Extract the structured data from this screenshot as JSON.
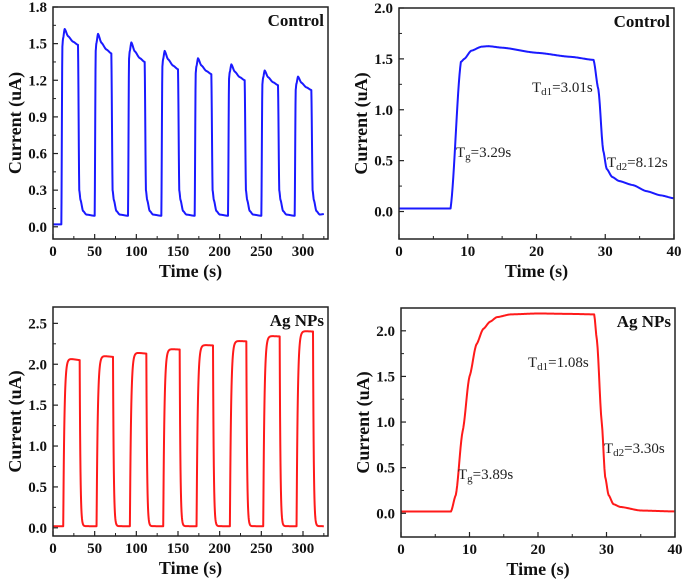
{
  "chart_data": [
    {
      "type": "line",
      "panel_label": "Control",
      "xlabel": "Time (s)",
      "ylabel": "Current (uA)",
      "xlim": [
        0,
        330
      ],
      "ylim": [
        -0.1,
        1.8
      ],
      "xticks": [
        0,
        50,
        100,
        150,
        200,
        250,
        300
      ],
      "yticks": [
        0.0,
        0.3,
        0.6,
        0.9,
        1.2,
        1.5,
        1.8
      ],
      "ytick_decimals": 1,
      "color": "#1a1aff",
      "dark_current": 0.02,
      "x_end": 325,
      "cycles": {
        "light_on": [
          10,
          50,
          90,
          130,
          170,
          210,
          250,
          290
        ],
        "light_off": [
          30,
          70,
          110,
          150,
          190,
          230,
          270,
          310
        ],
        "peak": [
          1.62,
          1.58,
          1.51,
          1.44,
          1.38,
          1.33,
          1.28,
          1.23
        ],
        "end_of_on": [
          1.49,
          1.42,
          1.35,
          1.29,
          1.25,
          1.2,
          1.16,
          1.12
        ],
        "min_off": [
          0.09,
          0.09,
          0.09,
          0.09,
          0.09,
          0.09,
          0.09,
          0.11
        ]
      }
    },
    {
      "type": "line",
      "panel_label": "Control",
      "xlabel": "Time (s)",
      "ylabel": "Current (uA)",
      "xlim": [
        0,
        40
      ],
      "ylim": [
        -0.27,
        2.0
      ],
      "xticks": [
        0,
        10,
        20,
        30,
        40
      ],
      "yticks": [
        0.0,
        0.5,
        1.0,
        1.5,
        2.0
      ],
      "ytick_decimals": 1,
      "color": "#1a1aff",
      "x": [
        0,
        7.5,
        9.0,
        9.5,
        10.5,
        12,
        13,
        15,
        20,
        25,
        28.3,
        29,
        29.7,
        30.2,
        31,
        32,
        34,
        36,
        38,
        40
      ],
      "y": [
        0.03,
        0.03,
        1.47,
        1.5,
        1.58,
        1.62,
        1.625,
        1.61,
        1.56,
        1.52,
        1.49,
        1.2,
        0.6,
        0.42,
        0.34,
        0.3,
        0.26,
        0.2,
        0.16,
        0.13
      ],
      "annotations": [
        {
          "main": "T",
          "sub": "g",
          "value": "=3.29s"
        },
        {
          "main": "T",
          "sub": "d1",
          "value": "=3.01s"
        },
        {
          "main": "T",
          "sub": "d2",
          "value": "=8.12s"
        }
      ]
    },
    {
      "type": "line",
      "panel_label": "Ag NPs",
      "xlabel": "Time (s)",
      "ylabel": "Current (uA)",
      "xlim": [
        0,
        330
      ],
      "ylim": [
        -0.1,
        2.7
      ],
      "xticks": [
        0,
        50,
        100,
        150,
        200,
        250,
        300
      ],
      "yticks": [
        0.0,
        0.5,
        1.0,
        1.5,
        2.0,
        2.5
      ],
      "ytick_decimals": 1,
      "color": "#ff1a1a",
      "dark_current": 0.02,
      "x_end": 325,
      "cycles": {
        "light_on": [
          12,
          52,
          92,
          132,
          172,
          212,
          252,
          292
        ],
        "light_off": [
          32,
          72,
          112,
          152,
          192,
          232,
          272,
          312
        ],
        "peak": [
          2.08,
          2.11,
          2.15,
          2.19,
          2.24,
          2.29,
          2.35,
          2.41
        ],
        "end_of_on": [
          2.05,
          2.09,
          2.13,
          2.18,
          2.23,
          2.28,
          2.34,
          2.4
        ],
        "min_off": [
          0.02,
          0.02,
          0.02,
          0.02,
          0.02,
          0.02,
          0.02,
          0.02
        ]
      }
    },
    {
      "type": "line",
      "panel_label": "Ag NPs",
      "xlabel": "Time (s)",
      "ylabel": "Current (uA)",
      "xlim": [
        0,
        40
      ],
      "ylim": [
        -0.26,
        2.25
      ],
      "xticks": [
        0,
        10,
        20,
        30,
        40
      ],
      "yticks": [
        0.0,
        0.5,
        1.0,
        1.5,
        2.0
      ],
      "ytick_decimals": 1,
      "color": "#ff1a1a",
      "x": [
        0,
        7.3,
        8,
        9,
        10,
        11,
        12,
        13,
        14,
        16,
        20,
        25,
        28.2,
        28.6,
        29.3,
        29.8,
        30.3,
        31,
        32,
        35,
        40
      ],
      "y": [
        0.02,
        0.02,
        0.2,
        0.9,
        1.5,
        1.85,
        2.02,
        2.1,
        2.15,
        2.18,
        2.19,
        2.185,
        2.18,
        1.9,
        1.0,
        0.4,
        0.2,
        0.1,
        0.07,
        0.03,
        0.02
      ],
      "annotations": [
        {
          "main": "T",
          "sub": "g",
          "value": "=3.89s"
        },
        {
          "main": "T",
          "sub": "d1",
          "value": "=1.08s"
        },
        {
          "main": "T",
          "sub": "d2",
          "value": "=3.30s"
        }
      ]
    }
  ]
}
